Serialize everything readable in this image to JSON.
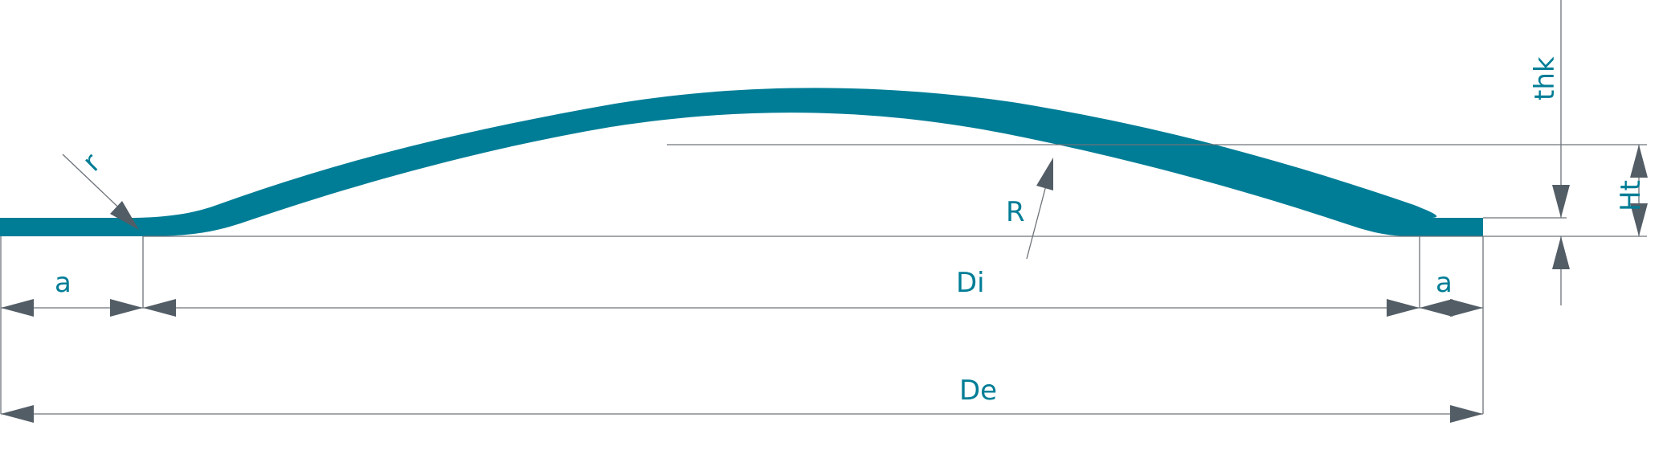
{
  "colors": {
    "profile": "#007d96",
    "dimension_line": "#6d737a",
    "arrowhead": "#535d66",
    "label": "#007d96"
  },
  "labels": {
    "knuckle_radius": "r",
    "crown_radius": "R",
    "inner_diameter": "Di",
    "outer_diameter": "De",
    "flange_left": "a",
    "flange_right": "a",
    "thickness": "thk",
    "total_height": "Ht"
  }
}
